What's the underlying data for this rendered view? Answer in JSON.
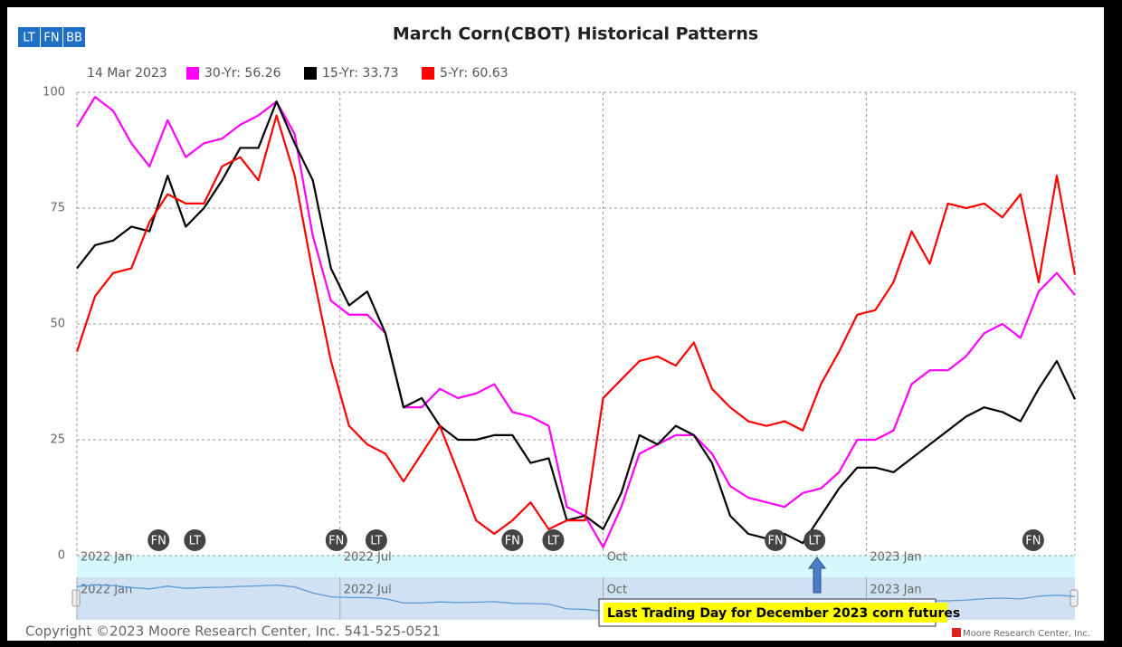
{
  "chart_data": {
    "type": "line",
    "title": "March Corn(CBOT) Historical Patterns",
    "buttons": [
      "LT",
      "FN",
      "BB"
    ],
    "legend_date": "14 Mar 2023",
    "xlim": [
      0,
      110
    ],
    "xticks": [
      {
        "value": 0,
        "label": "2022 Jan"
      },
      {
        "value": 29,
        "label": "2022 Jul"
      },
      {
        "value": 58,
        "label": "Oct"
      },
      {
        "value": 87,
        "label": "2023 Jan"
      }
    ],
    "ylim": [
      0,
      100
    ],
    "yticks": [
      0,
      25,
      50,
      75,
      100
    ],
    "grid": true,
    "x": [
      0,
      2,
      4,
      6,
      8,
      10,
      12,
      14,
      16,
      18,
      20,
      22,
      24,
      26,
      28,
      30,
      32,
      34,
      36,
      38,
      40,
      42,
      44,
      46,
      48,
      50,
      52,
      54,
      56,
      58,
      60,
      62,
      64,
      66,
      68,
      70,
      72,
      74,
      76,
      78,
      80,
      82,
      84,
      86,
      88,
      90,
      92,
      94,
      96,
      98,
      100,
      102,
      104,
      106,
      108,
      110
    ],
    "series": [
      {
        "name": "30-Yr: 56.26",
        "color": "#ff00ff",
        "values": [
          92.6,
          99,
          96,
          89,
          84,
          94,
          86,
          89,
          90,
          93,
          95,
          98,
          91,
          69,
          55,
          52,
          52,
          48,
          32,
          32,
          36,
          34,
          35,
          37,
          31,
          30,
          28,
          10.5,
          8.6,
          1.8,
          10.5,
          22,
          24,
          26,
          26,
          22,
          15,
          12.5,
          11.5,
          10.5,
          13.5,
          14.5,
          18,
          25,
          25,
          27,
          37,
          40,
          40,
          43,
          48,
          50,
          47,
          57,
          61,
          56.26
        ]
      },
      {
        "name": "15-Yr: 33.73",
        "color": "#000000",
        "values": [
          62,
          67,
          68,
          71,
          70,
          82,
          71,
          75,
          81,
          88,
          88,
          98,
          89,
          81,
          62,
          54,
          57,
          48,
          32,
          34,
          28,
          25,
          25,
          26,
          26,
          20,
          21,
          7.6,
          8.6,
          5.7,
          13.5,
          26,
          24,
          28,
          26,
          20,
          8.6,
          4.7,
          3.7,
          4.7,
          2.7,
          8.6,
          14.5,
          19,
          19,
          18,
          21,
          24,
          27,
          30,
          32,
          31,
          29,
          36,
          42,
          33.73
        ]
      },
      {
        "name": "5-Yr: 60.63",
        "color": "#ff0000",
        "values": [
          44,
          56,
          61,
          62,
          72,
          78,
          76,
          76,
          84,
          86,
          81,
          95,
          82,
          61,
          42,
          28,
          24,
          22,
          16,
          22,
          28,
          18,
          7.6,
          4.7,
          7.6,
          11.5,
          5.7,
          7.6,
          7.6,
          34,
          38,
          42,
          43,
          41,
          46,
          36,
          32,
          29,
          28,
          29,
          27,
          37,
          44,
          52,
          53,
          59,
          70,
          63,
          76,
          75,
          76,
          73,
          78,
          59,
          82,
          60.63
        ]
      }
    ],
    "events": [
      {
        "label": "FN",
        "x": 9
      },
      {
        "label": "LT",
        "x": 13
      },
      {
        "label": "FN",
        "x": 28.6
      },
      {
        "label": "LT",
        "x": 33
      },
      {
        "label": "FN",
        "x": 48
      },
      {
        "label": "LT",
        "x": 52.5
      },
      {
        "label": "FN",
        "x": 77
      },
      {
        "label": "LT",
        "x": 81.3
      },
      {
        "label": "FN",
        "x": 105.4
      }
    ],
    "annotation": "Last Trading Day for December 2023 corn futures",
    "copyright": "Copyright ©2023 Moore Research Center, Inc. 541-525-0521",
    "credit": "Moore Research Center, Inc."
  }
}
